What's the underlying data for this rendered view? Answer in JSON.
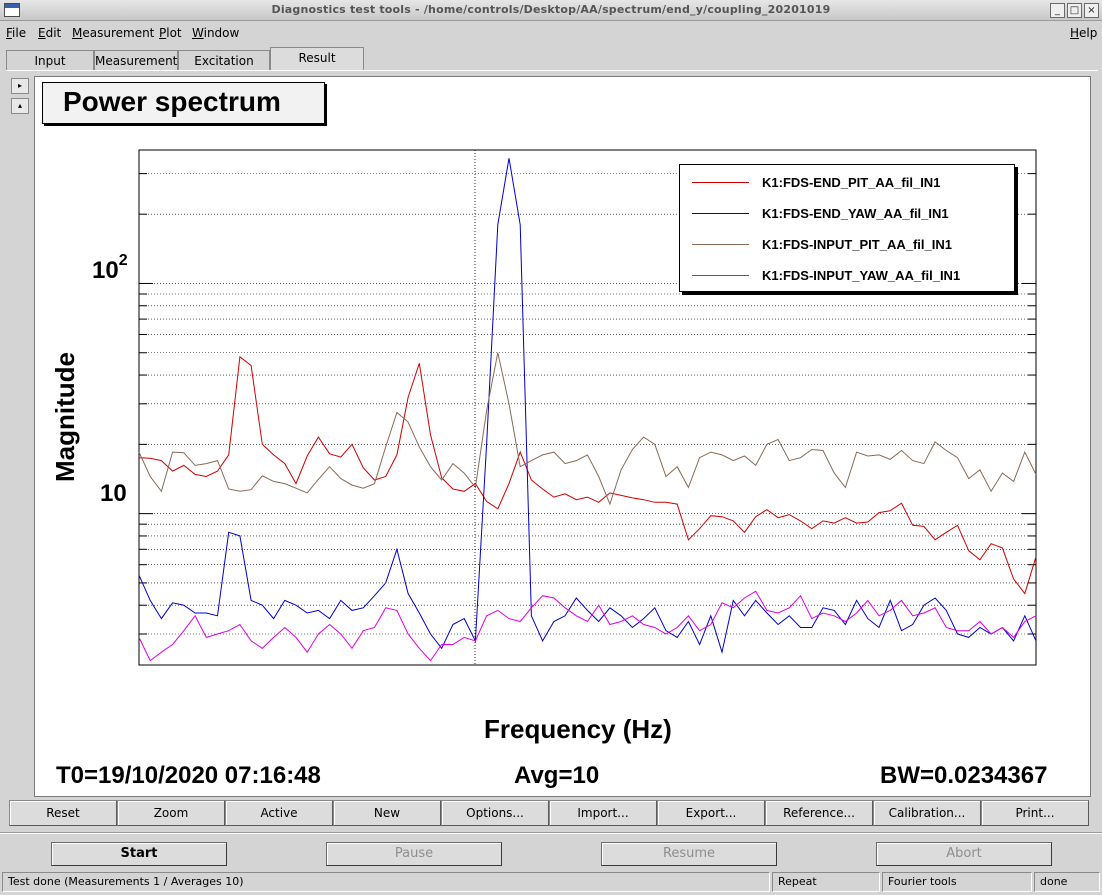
{
  "window": {
    "title": "Diagnostics test tools - /home/controls/Desktop/AA/spectrum/end_y/coupling_20201019",
    "controls": [
      "_",
      "□",
      "×"
    ]
  },
  "menu": {
    "items": [
      "File",
      "Edit",
      "Measurement",
      "Plot",
      "Window"
    ],
    "help": "Help"
  },
  "tabs": [
    "Input",
    "Measurement",
    "Excitation",
    "Result"
  ],
  "active_tab": "Result",
  "scroll_arrows": {
    "up": "▸",
    "down": "▴"
  },
  "plot": {
    "title": "Power spectrum",
    "info": {
      "t0": "T0=19/10/2020 07:16:48",
      "avg": "Avg=10",
      "bw": "BW=0.0234367"
    }
  },
  "chart_data": {
    "type": "line",
    "title": "Power spectrum",
    "xlabel": "Frequency (Hz)",
    "ylabel": "Magnitude",
    "yscale": "log",
    "ylim": [
      2.2,
      380
    ],
    "ytick_labels": [
      {
        "base": "10",
        "exp": "2",
        "value": 100
      },
      {
        "base": "10",
        "exp": "",
        "value": 10
      }
    ],
    "grid": true,
    "legend_position": "top-right",
    "x_index_count": 81,
    "series": [
      {
        "name": "K1:FDS-END_PIT_AA_fil_IN1",
        "color": "#d00000",
        "values": [
          17.5,
          17.4,
          17.0,
          15.3,
          16.2,
          14.8,
          14.5,
          15.3,
          18.0,
          48.0,
          44.0,
          20.0,
          18.0,
          16.5,
          13.5,
          17.8,
          21.5,
          18.2,
          17.6,
          20.0,
          15.8,
          14.0,
          14.5,
          18.0,
          32.0,
          45.0,
          22.0,
          14.3,
          12.8,
          12.5,
          13.5,
          11.3,
          10.5,
          13.5,
          18.5,
          14.0,
          12.8,
          11.8,
          12.2,
          11.5,
          11.8,
          11.2,
          12.3,
          12.0,
          11.7,
          11.5,
          11.2,
          11.2,
          11.0,
          7.7,
          8.6,
          9.8,
          9.7,
          9.3,
          8.3,
          9.7,
          10.4,
          9.6,
          9.9,
          9.3,
          8.6,
          9.3,
          9.1,
          9.6,
          9.1,
          9.2,
          10.1,
          10.3,
          11.1,
          8.9,
          8.8,
          7.7,
          8.3,
          8.9,
          6.9,
          6.3,
          7.4,
          7.1,
          5.2,
          4.5,
          6.5
        ]
      },
      {
        "name": "K1:FDS-END_YAW_AA_fil_IN1",
        "color": "#0000c8",
        "values": [
          5.4,
          4.2,
          3.5,
          4.1,
          4.0,
          3.7,
          3.7,
          3.6,
          8.3,
          8.0,
          4.2,
          4.0,
          3.5,
          4.2,
          4.0,
          3.7,
          3.8,
          3.5,
          4.2,
          3.8,
          3.9,
          4.4,
          5.0,
          7.0,
          4.5,
          3.7,
          3.0,
          2.6,
          3.3,
          3.5,
          2.8,
          20.0,
          180.0,
          350.0,
          180.0,
          3.6,
          2.8,
          3.4,
          3.6,
          4.3,
          3.8,
          3.4,
          3.9,
          3.6,
          3.2,
          3.5,
          3.9,
          3.1,
          2.9,
          3.4,
          2.7,
          3.6,
          2.5,
          4.2,
          3.6,
          4.2,
          3.7,
          3.3,
          3.6,
          3.2,
          3.2,
          3.9,
          3.8,
          3.3,
          4.2,
          3.5,
          3.2,
          4.2,
          3.1,
          3.3,
          4.0,
          4.3,
          3.8,
          3.0,
          2.9,
          3.2,
          3.0,
          3.2,
          2.8,
          3.6,
          2.8
        ]
      },
      {
        "name": "K1:FDS-INPUT_PIT_AA_fil_IN1",
        "color": "#8a6a55",
        "values": [
          18.5,
          14.5,
          12.5,
          18.5,
          18.4,
          16.2,
          16.5,
          17.0,
          12.8,
          12.5,
          12.7,
          14.6,
          13.8,
          13.5,
          12.9,
          12.3,
          14.1,
          16.0,
          14.2,
          13.3,
          12.9,
          13.5,
          19.5,
          27.5,
          25.0,
          19.5,
          16.0,
          14.0,
          16.5,
          15.0,
          13.0,
          28.0,
          50.0,
          30.0,
          16.0,
          17.0,
          18.0,
          18.5,
          16.5,
          17.0,
          18.0,
          14.5,
          11.0,
          15.5,
          19.0,
          21.5,
          20.0,
          14.5,
          16.0,
          13.0,
          17.5,
          18.5,
          18.0,
          17.0,
          17.8,
          16.2,
          20.0,
          21.0,
          17.0,
          17.5,
          19.0,
          18.8,
          15.0,
          13.0,
          18.5,
          17.8,
          18.0,
          17.2,
          18.8,
          17.0,
          16.5,
          20.5,
          18.8,
          17.5,
          14.2,
          15.5,
          12.5,
          15.0,
          13.8,
          18.5,
          14.8
        ]
      },
      {
        "name": "K1:FDS-INPUT_YAW_AA_fil_IN1",
        "color": "#e000e0",
        "values": [
          2.9,
          2.3,
          2.5,
          2.7,
          3.1,
          3.6,
          2.9,
          3.0,
          3.1,
          3.3,
          2.8,
          2.6,
          2.9,
          3.2,
          2.9,
          2.5,
          3.0,
          3.3,
          3.0,
          2.6,
          3.1,
          3.2,
          3.9,
          3.8,
          3.0,
          2.6,
          2.3,
          2.7,
          2.7,
          2.9,
          2.8,
          3.6,
          3.8,
          3.5,
          3.4,
          3.9,
          4.4,
          4.3,
          3.9,
          3.6,
          3.4,
          4.0,
          3.3,
          3.4,
          3.6,
          3.3,
          3.2,
          3.0,
          3.2,
          3.6,
          3.1,
          3.3,
          4.1,
          3.9,
          4.3,
          4.6,
          3.8,
          3.7,
          3.9,
          4.4,
          3.5,
          3.7,
          3.6,
          3.4,
          3.7,
          4.2,
          3.6,
          3.8,
          4.2,
          3.6,
          3.7,
          3.9,
          3.2,
          3.1,
          3.1,
          3.4,
          3.0,
          3.2,
          2.9,
          3.4,
          3.6
        ]
      }
    ]
  },
  "toolbar": [
    "Reset",
    "Zoom",
    "Active",
    "New",
    "Options...",
    "Import...",
    "Export...",
    "Reference...",
    "Calibration...",
    "Print..."
  ],
  "controls": {
    "start": "Start",
    "pause": "Pause",
    "resume": "Resume",
    "abort": "Abort"
  },
  "status": {
    "message": "Test done (Measurements 1 / Averages 10)",
    "mode": "Repeat",
    "tool": "Fourier tools",
    "state": "done"
  }
}
